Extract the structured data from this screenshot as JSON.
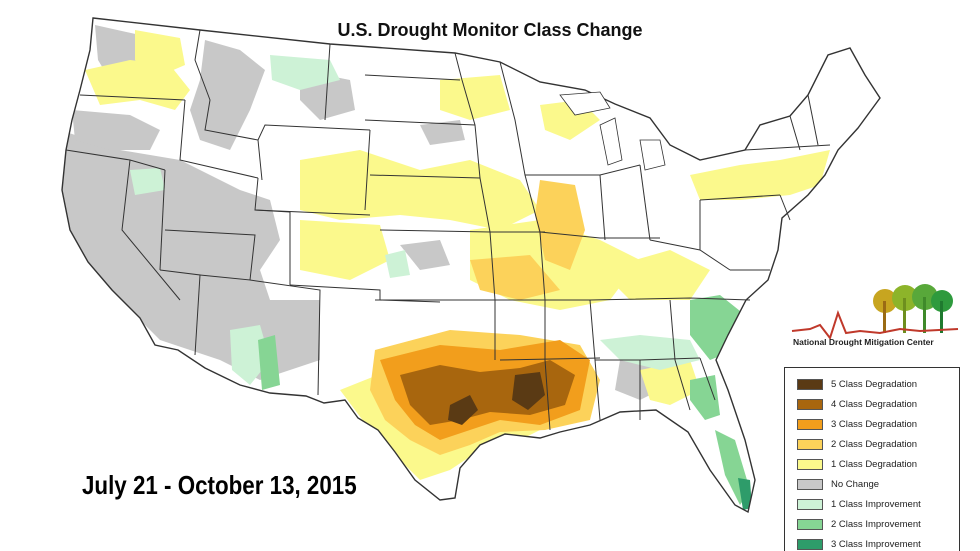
{
  "title": "U.S. Drought Monitor Class Change",
  "date_range": "July 21 - October 13, 2015",
  "logo": {
    "text": "National Drought Mitigation Center"
  },
  "legend": {
    "items": [
      {
        "label": "5 Class Degradation",
        "color": "#5a3a14"
      },
      {
        "label": "4 Class Degradation",
        "color": "#a8660e"
      },
      {
        "label": "3 Class Degradation",
        "color": "#f29e1c"
      },
      {
        "label": "2 Class Degradation",
        "color": "#fcd25a"
      },
      {
        "label": "1 Class Degradation",
        "color": "#fbf98c"
      },
      {
        "label": "No Change",
        "color": "#c8c8c8"
      },
      {
        "label": "1 Class Improvement",
        "color": "#cdf2d6"
      },
      {
        "label": "2 Class Improvement",
        "color": "#86d594"
      },
      {
        "label": "3 Class Improvement",
        "color": "#2e9c6a"
      }
    ]
  },
  "colors": {
    "land": "#ffffff",
    "state_border": "#333333",
    "water": "#ffffff"
  }
}
